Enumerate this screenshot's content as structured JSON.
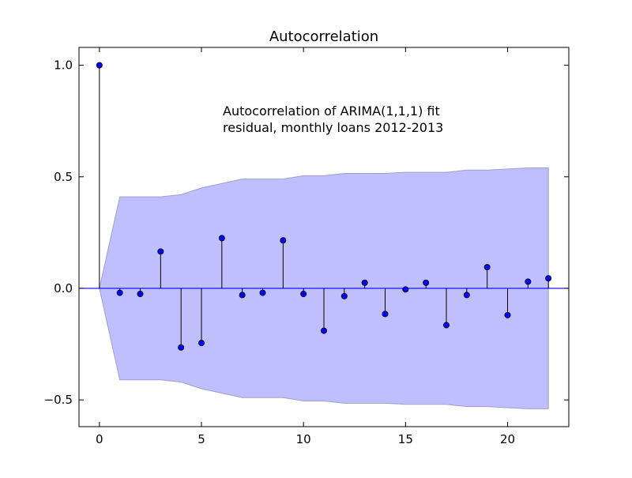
{
  "chart_data": {
    "type": "stem",
    "title": "Autocorrelation",
    "annotation": [
      "Autocorrelation of ARIMA(1,1,1) fit",
      "residual, monthly loans 2012-2013"
    ],
    "xlabel": "",
    "ylabel": "",
    "xlim": [
      -1,
      23
    ],
    "ylim": [
      -0.62,
      1.08
    ],
    "xticks": [
      0,
      5,
      10,
      15,
      20
    ],
    "xtick_labels": [
      "0",
      "5",
      "10",
      "15",
      "20"
    ],
    "yticks": [
      1.0,
      0.5,
      0.0,
      -0.5
    ],
    "ytick_labels": [
      "1.0",
      "0.5",
      "0.0",
      "−0.5"
    ],
    "lags": [
      0,
      1,
      2,
      3,
      4,
      5,
      6,
      7,
      8,
      9,
      10,
      11,
      12,
      13,
      14,
      15,
      16,
      17,
      18,
      19,
      20,
      21,
      22
    ],
    "acf": [
      1.0,
      -0.02,
      -0.025,
      0.165,
      -0.265,
      -0.245,
      0.225,
      -0.03,
      -0.02,
      0.215,
      -0.025,
      -0.19,
      -0.035,
      0.025,
      -0.115,
      -0.005,
      0.025,
      -0.165,
      -0.03,
      0.095,
      -0.12,
      0.03,
      0.045
    ],
    "confint_upper": [
      0.0,
      0.41,
      0.41,
      0.41,
      0.42,
      0.45,
      0.47,
      0.49,
      0.49,
      0.49,
      0.505,
      0.505,
      0.515,
      0.515,
      0.515,
      0.52,
      0.52,
      0.52,
      0.53,
      0.53,
      0.535,
      0.54,
      0.54
    ],
    "grid": false,
    "colors": {
      "marker": "#0000ff",
      "stem": "#000000",
      "zero_line": "#0000ff",
      "confidence_band": "#bfbffe",
      "confidence_edge": "#9f9fcf"
    }
  }
}
